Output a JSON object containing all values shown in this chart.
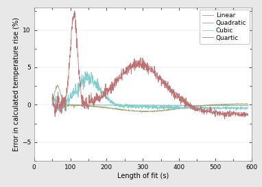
{
  "title": "",
  "xlabel": "Length of fit (s)",
  "ylabel": "Error in calculated temperature rise (%)",
  "xlim": [
    0,
    600
  ],
  "ylim": [
    -7.5,
    13
  ],
  "yticks": [
    -5,
    0,
    5,
    10
  ],
  "xticks": [
    0,
    100,
    200,
    300,
    400,
    500,
    600
  ],
  "legend_labels": [
    "Linear",
    "Quadratic",
    "Cubic",
    "Quartic"
  ],
  "colors": {
    "linear": "#7b9fbe",
    "quadratic": "#9aad6e",
    "cubic": "#7ecfca",
    "quartic": "#c07070"
  },
  "linewidth": 0.6,
  "background_color": "#ffffff",
  "outer_bg": "#e8e8e8",
  "legend_fontsize": 6.5,
  "axis_fontsize": 7,
  "tick_fontsize": 6.5
}
